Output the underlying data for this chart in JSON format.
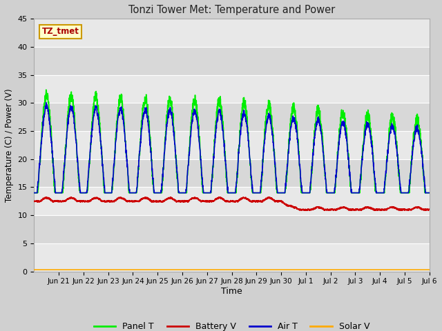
{
  "title": "Tonzi Tower Met: Temperature and Power",
  "xlabel": "Time",
  "ylabel": "Temperature (C) / Power (V)",
  "ylim": [
    0,
    45
  ],
  "yticks": [
    0,
    5,
    10,
    15,
    20,
    25,
    30,
    35,
    40,
    45
  ],
  "fig_bg_color": "#d0d0d0",
  "plot_bg_color": "#e8e8e8",
  "band_light": "#e8e8e8",
  "band_dark": "#d8d8d8",
  "grid_color": "#ffffff",
  "annotation_text": "TZ_tmet",
  "annotation_bg": "#ffffcc",
  "annotation_border": "#cc9900",
  "annotation_text_color": "#aa0000",
  "legend_entries": [
    "Panel T",
    "Battery V",
    "Air T",
    "Solar V"
  ],
  "legend_colors": [
    "#00ee00",
    "#cc0000",
    "#0000cc",
    "#ffaa00"
  ],
  "x_tick_labels": [
    "Jun 21",
    "Jun 22",
    "Jun 23",
    "Jun 24",
    "Jun 25",
    "Jun 26",
    "Jun 27",
    "Jun 28",
    "Jun 29",
    "Jun 30",
    "Jul 1",
    "Jul 2",
    "Jul 3",
    "Jul 4",
    "Jul 5",
    "Jul 6"
  ],
  "solar_v_value": 0.3,
  "panel_t_color": "#00ee00",
  "battery_v_color": "#cc0000",
  "air_t_color": "#0000cc",
  "solar_v_color": "#ffaa00",
  "line_width": 1.2
}
